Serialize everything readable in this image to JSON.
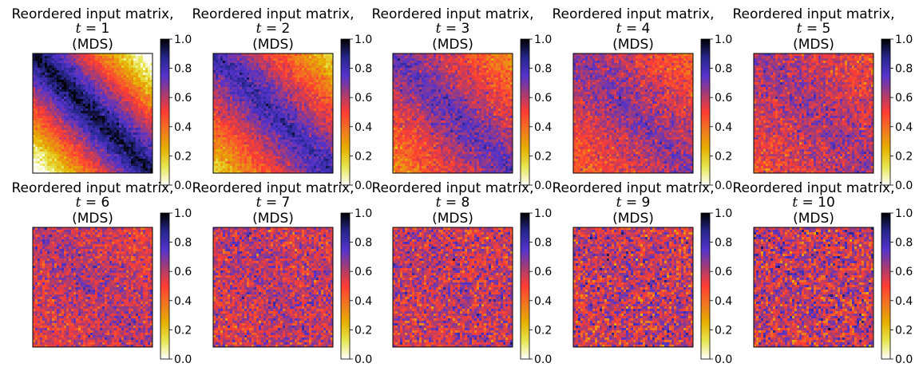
{
  "colormap": {
    "name": "CMRmap_r",
    "stops": [
      [
        0.0,
        "#ffffff"
      ],
      [
        0.125,
        "#e6e650"
      ],
      [
        0.25,
        "#e6b000"
      ],
      [
        0.375,
        "#f07820"
      ],
      [
        0.5,
        "#ff3c33"
      ],
      [
        0.625,
        "#a63c73"
      ],
      [
        0.75,
        "#5433cc"
      ],
      [
        0.875,
        "#26268c"
      ],
      [
        1.0,
        "#000000"
      ]
    ]
  },
  "chart_data": [
    {
      "type": "heatmap",
      "title_line1": "Reordered input matrix,",
      "title_t": "t",
      "title_eq": " = 1",
      "title_line3": "(MDS)",
      "colorbar": {
        "vmin": 0.0,
        "vmax": 1.0,
        "ticks": [
          "0.0",
          "0.2",
          "0.4",
          "0.6",
          "0.8",
          "1.0"
        ]
      }
    },
    {
      "type": "heatmap",
      "title_line1": "Reordered input matrix,",
      "title_t": "t",
      "title_eq": " = 2",
      "title_line3": "(MDS)",
      "colorbar": {
        "vmin": 0.0,
        "vmax": 1.0,
        "ticks": [
          "0.0",
          "0.2",
          "0.4",
          "0.6",
          "0.8",
          "1.0"
        ]
      }
    },
    {
      "type": "heatmap",
      "title_line1": "Reordered input matrix,",
      "title_t": "t",
      "title_eq": " = 3",
      "title_line3": "(MDS)",
      "colorbar": {
        "vmin": 0.0,
        "vmax": 1.0,
        "ticks": [
          "0.0",
          "0.2",
          "0.4",
          "0.6",
          "0.8",
          "1.0"
        ]
      }
    },
    {
      "type": "heatmap",
      "title_line1": "Reordered input matrix,",
      "title_t": "t",
      "title_eq": " = 4",
      "title_line3": "(MDS)",
      "colorbar": {
        "vmin": 0.0,
        "vmax": 1.0,
        "ticks": [
          "0.0",
          "0.2",
          "0.4",
          "0.6",
          "0.8",
          "1.0"
        ]
      }
    },
    {
      "type": "heatmap",
      "title_line1": "Reordered input matrix,",
      "title_t": "t",
      "title_eq": " = 5",
      "title_line3": "(MDS)",
      "colorbar": {
        "vmin": 0.0,
        "vmax": 1.0,
        "ticks": [
          "0.0",
          "0.2",
          "0.4",
          "0.6",
          "0.8",
          "1.0"
        ]
      }
    },
    {
      "type": "heatmap",
      "title_line1": "Reordered input matrix,",
      "title_t": "t",
      "title_eq": " = 6",
      "title_line3": "(MDS)",
      "colorbar": {
        "vmin": 0.0,
        "vmax": 1.0,
        "ticks": [
          "0.0",
          "0.2",
          "0.4",
          "0.6",
          "0.8",
          "1.0"
        ]
      }
    },
    {
      "type": "heatmap",
      "title_line1": "Reordered input matrix,",
      "title_t": "t",
      "title_eq": " = 7",
      "title_line3": "(MDS)",
      "colorbar": {
        "vmin": 0.0,
        "vmax": 1.0,
        "ticks": [
          "0.0",
          "0.2",
          "0.4",
          "0.6",
          "0.8",
          "1.0"
        ]
      }
    },
    {
      "type": "heatmap",
      "title_line1": "Reordered input matrix,",
      "title_t": "t",
      "title_eq": " = 8",
      "title_line3": "(MDS)",
      "colorbar": {
        "vmin": 0.0,
        "vmax": 1.0,
        "ticks": [
          "0.0",
          "0.2",
          "0.4",
          "0.6",
          "0.8",
          "1.0"
        ]
      }
    },
    {
      "type": "heatmap",
      "title_line1": "Reordered input matrix,",
      "title_t": "t",
      "title_eq": " = 9",
      "title_line3": "(MDS)",
      "colorbar": {
        "vmin": 0.0,
        "vmax": 1.0,
        "ticks": [
          "0.0",
          "0.2",
          "0.4",
          "0.6",
          "0.8",
          "1.0"
        ]
      }
    },
    {
      "type": "heatmap",
      "title_line1": "Reordered input matrix,",
      "title_t": "t",
      "title_eq": " = 10",
      "title_line3": "(MDS)",
      "colorbar": {
        "vmin": 0.0,
        "vmax": 1.0,
        "ticks": [
          "0.0",
          "0.2",
          "0.4",
          "0.6",
          "0.8",
          "1.0"
        ]
      }
    }
  ]
}
